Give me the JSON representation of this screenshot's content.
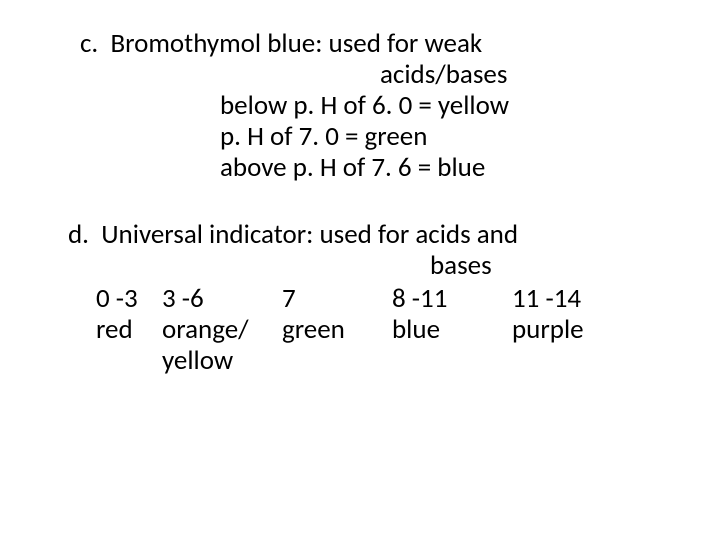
{
  "c": {
    "marker": "c.",
    "title": "Bromothymol blue: used for weak",
    "title_cont": "acids/bases",
    "lines": [
      "below p. H of 6. 0 = yellow",
      "p. H of 7. 0 = green",
      "above p. H of 7. 6 = blue"
    ]
  },
  "d": {
    "marker": "d.",
    "title": "Universal indicator: used for acids and",
    "title_cont": "bases",
    "ranges": [
      "0 -3",
      "3 -6",
      "7",
      "8 -11",
      "11 -14"
    ],
    "colors": [
      "red",
      "orange/",
      "green",
      "blue",
      "purple"
    ],
    "colors2": [
      "",
      "yellow",
      "",
      "",
      ""
    ]
  },
  "style": {
    "background_color": "#ffffff",
    "text_color": "#000000",
    "font_family": "Calibri",
    "font_size_pt": 20
  }
}
